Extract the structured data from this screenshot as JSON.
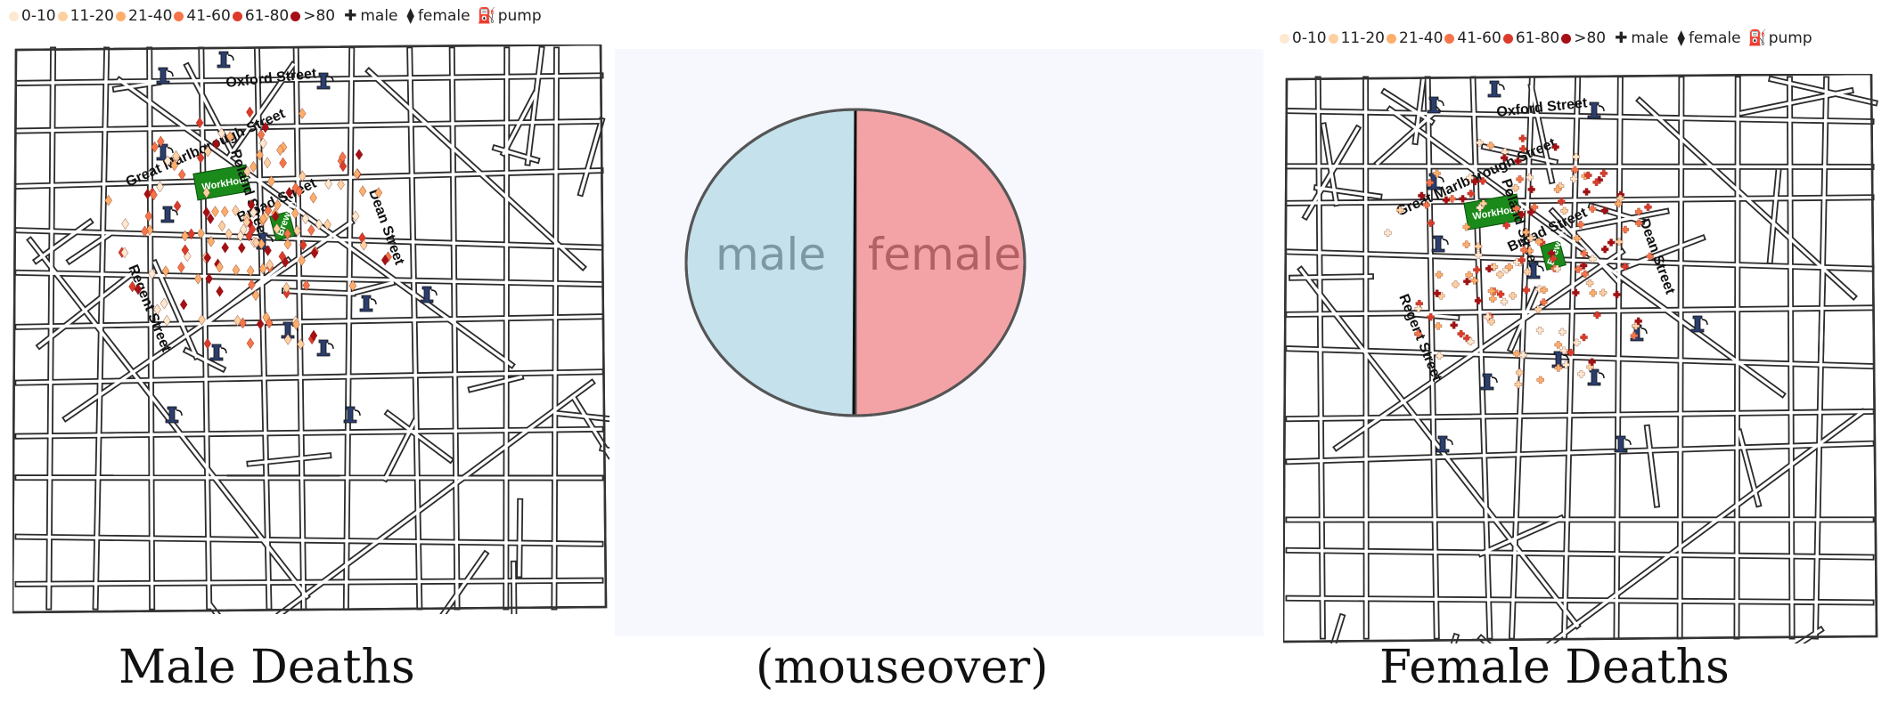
{
  "legend": {
    "bins": [
      {
        "label": "0-10",
        "color": "#fde9cf"
      },
      {
        "label": "11-20",
        "color": "#fdd0a2"
      },
      {
        "label": "21-40",
        "color": "#fdae6b"
      },
      {
        "label": "41-60",
        "color": "#f5744a"
      },
      {
        "label": "61-80",
        "color": "#dc3b2b"
      },
      {
        "label": ">80",
        "color": "#a50f15"
      }
    ],
    "male_label": "male",
    "female_label": "female",
    "pump_label": "pump"
  },
  "map": {
    "streets": [
      "Oxford Street",
      "Great Marlborough Street",
      "Poland Street",
      "Broad Street",
      "Dean Street",
      "Regent Street"
    ],
    "buildings": [
      "WorkHouse",
      "Brewery"
    ],
    "building_color": "#1a8a1a"
  },
  "captions": {
    "left": "Male Deaths",
    "center": "(mouseover)",
    "right": "Female Deaths"
  },
  "pie": {
    "slices": [
      {
        "label": "male",
        "fraction": 0.5,
        "color": "#c4e1ec",
        "text_color": "#7e98a3"
      },
      {
        "label": "female",
        "fraction": 0.5,
        "color": "#f3a3a6",
        "text_color": "#b36065"
      }
    ]
  }
}
